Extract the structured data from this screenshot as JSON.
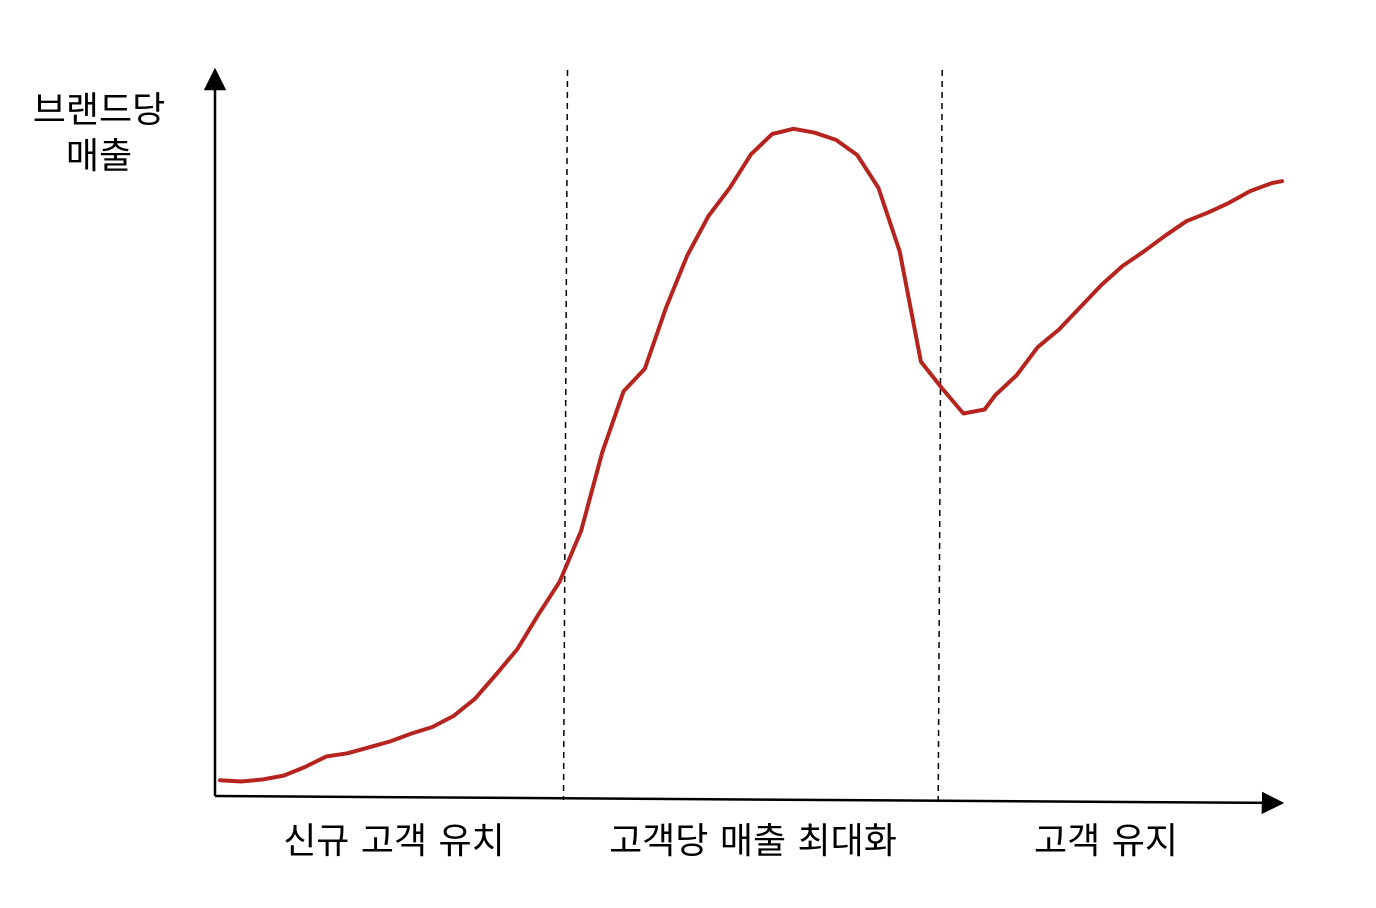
{
  "chart_data": {
    "type": "line",
    "title": "",
    "ylabel_lines": [
      "브랜드당",
      "매출"
    ],
    "xlabel": "",
    "phases": [
      "신규 고객 유치",
      "고객당 매출 최대화",
      "고객 유지"
    ],
    "phase_boundaries": [
      33,
      68
    ],
    "x_range": [
      0,
      100
    ],
    "y_range": [
      0,
      100
    ],
    "grid": false,
    "legend": "none",
    "line_color": "#b5241f",
    "series": [
      {
        "x": [
          0,
          2,
          4,
          6,
          8,
          10,
          12,
          14,
          16,
          18,
          20,
          22,
          24,
          26,
          28,
          30,
          32,
          34,
          36,
          38,
          40,
          42,
          44,
          46,
          48,
          50,
          52,
          54,
          56,
          58,
          60,
          62,
          64,
          66,
          68,
          70,
          72,
          73,
          75,
          77,
          79,
          81,
          83,
          85,
          87,
          89,
          91,
          93,
          95,
          97,
          99,
          100
        ],
        "y": [
          1.5,
          1.3,
          1.6,
          2.2,
          3.5,
          5.1,
          5.6,
          6.5,
          7.4,
          8.6,
          9.6,
          11.3,
          13.9,
          17.6,
          21.5,
          26.8,
          31.8,
          39.5,
          51.5,
          60.8,
          64.2,
          73.5,
          81.5,
          87.5,
          91.8,
          96.9,
          100,
          100.8,
          100.2,
          99.1,
          96.8,
          91.8,
          82.1,
          65.3,
          61.2,
          57.4,
          58,
          60.2,
          63.2,
          67.5,
          70.2,
          73.6,
          77,
          79.9,
          82.1,
          84.5,
          86.7,
          88,
          89.5,
          91.3,
          92.5,
          92.8
        ]
      }
    ]
  }
}
